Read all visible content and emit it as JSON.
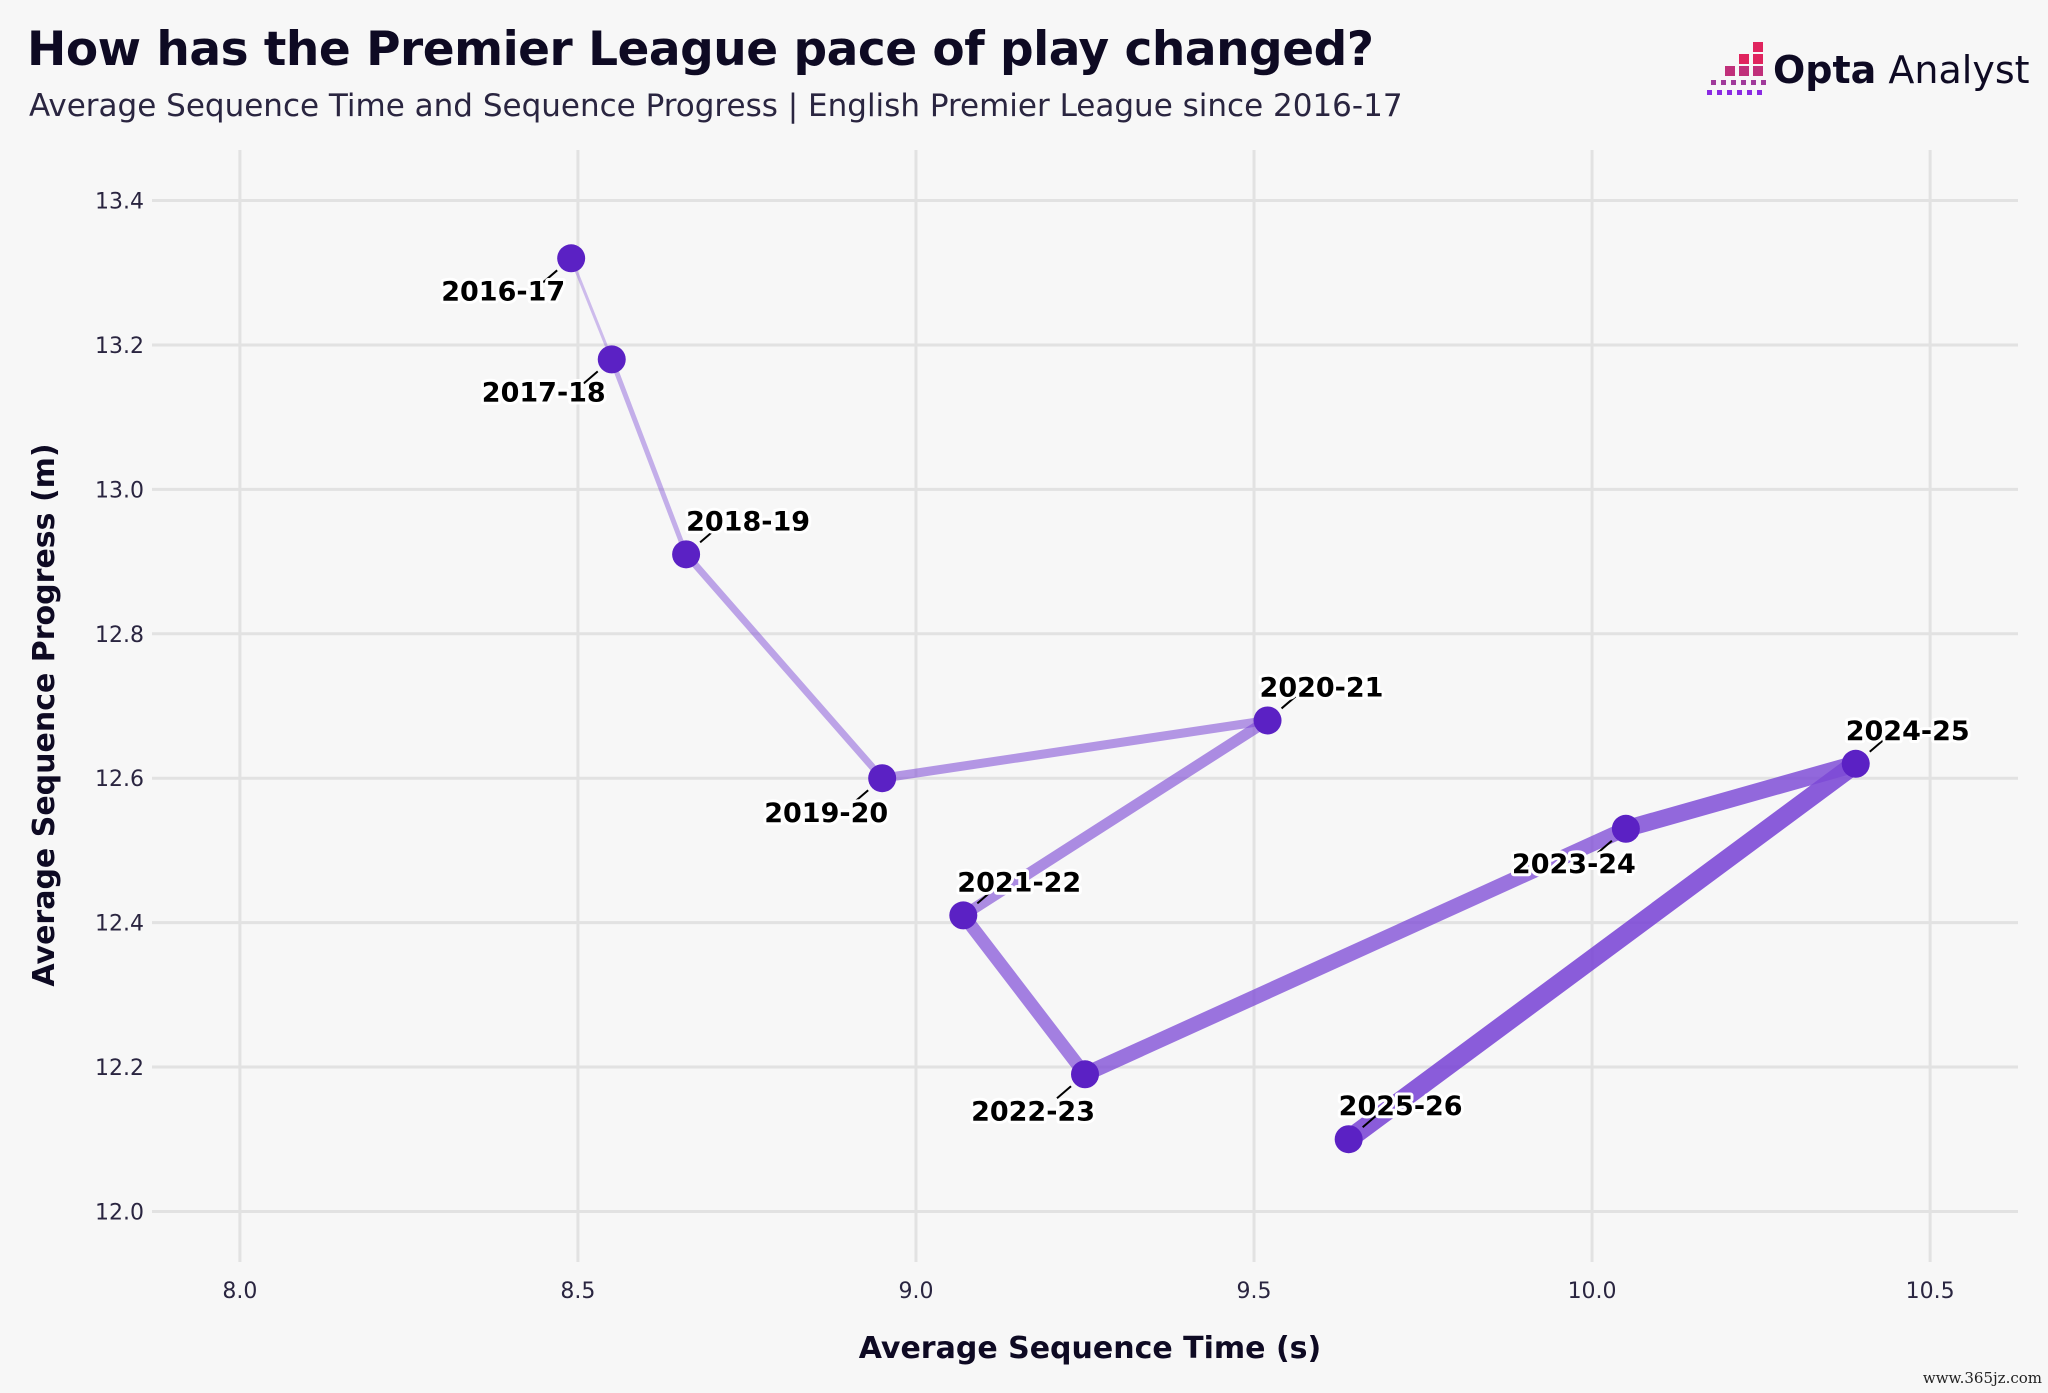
{
  "header": {
    "title": "How has the Premier League pace of play changed?",
    "subtitle": "Average Sequence Time and Sequence Progress | English Premier League since 2016-17"
  },
  "logo": {
    "brand": "Opta",
    "product": "Analyst",
    "icon": "opta-bar-icon"
  },
  "watermark": "www.365jz.com",
  "colors": {
    "point": "#5b21c4",
    "path": "#7d4ad6",
    "grid": "#e2e2e2",
    "logo_pink": "#e0245e",
    "logo_purple": "#8a2be2"
  },
  "chart_data": {
    "type": "scatter",
    "connected": true,
    "xlabel": "Average Sequence Time (s)",
    "ylabel": "Average Sequence Progress (m)",
    "xlim": [
      7.87,
      10.63
    ],
    "ylim": [
      11.93,
      13.47
    ],
    "xticks": [
      "8.0",
      "8.5",
      "9.0",
      "9.5",
      "10.0",
      "10.5"
    ],
    "yticks": [
      "12.0",
      "12.2",
      "12.4",
      "12.6",
      "12.8",
      "13.0",
      "13.2",
      "13.4"
    ],
    "grid": true,
    "points": [
      {
        "label": "2016-17",
        "x": 8.49,
        "y": 13.32
      },
      {
        "label": "2017-18",
        "x": 8.55,
        "y": 13.18
      },
      {
        "label": "2018-19",
        "x": 8.66,
        "y": 12.91
      },
      {
        "label": "2019-20",
        "x": 8.95,
        "y": 12.6
      },
      {
        "label": "2020-21",
        "x": 9.52,
        "y": 12.68
      },
      {
        "label": "2021-22",
        "x": 9.07,
        "y": 12.41
      },
      {
        "label": "2022-23",
        "x": 9.25,
        "y": 12.19
      },
      {
        "label": "2023-24",
        "x": 10.05,
        "y": 12.53
      },
      {
        "label": "2024-25",
        "x": 10.39,
        "y": 12.62
      },
      {
        "label": "2025-26",
        "x": 9.64,
        "y": 12.1
      }
    ]
  }
}
